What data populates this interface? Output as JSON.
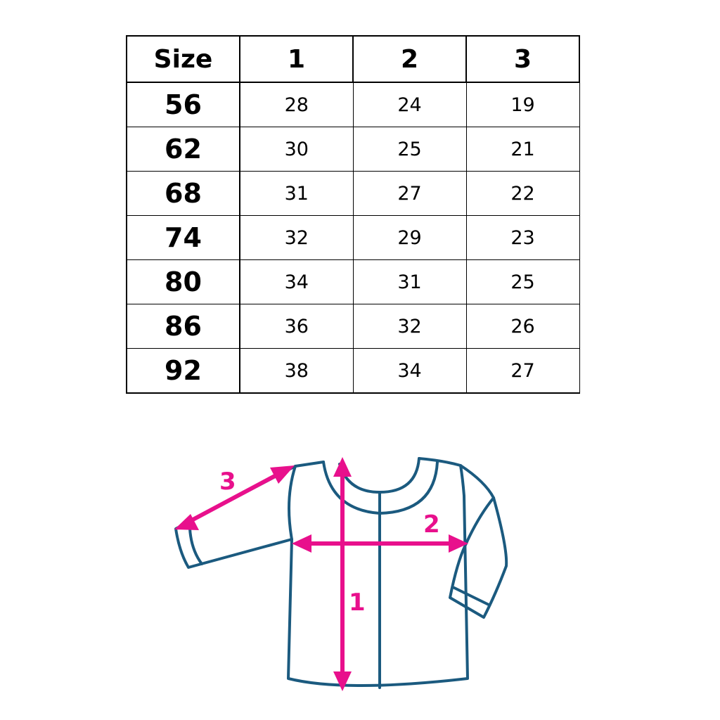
{
  "table": {
    "headers": [
      "Size",
      "1",
      "2",
      "3"
    ],
    "rows": [
      [
        "56",
        "28",
        "24",
        "19"
      ],
      [
        "62",
        "30",
        "25",
        "21"
      ],
      [
        "68",
        "31",
        "27",
        "22"
      ],
      [
        "74",
        "32",
        "29",
        "23"
      ],
      [
        "80",
        "34",
        "31",
        "25"
      ],
      [
        "86",
        "36",
        "32",
        "26"
      ],
      [
        "92",
        "38",
        "34",
        "27"
      ]
    ]
  },
  "diagram": {
    "labels": {
      "length": "1",
      "width": "2",
      "sleeve": "3"
    },
    "colors": {
      "outline": "#1b5a7f",
      "arrow": "#e8108c"
    }
  }
}
